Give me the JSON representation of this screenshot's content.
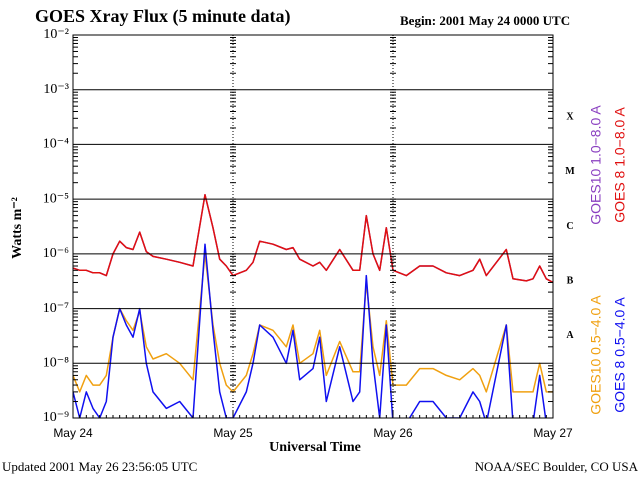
{
  "chart_data": {
    "type": "line",
    "title": "GOES Xray Flux (5 minute data)",
    "subtitle": "Begin:  2001 May 24 0000 UTC",
    "y_label": "Watts m⁻²",
    "x_label": "Universal Time",
    "footer_left": "Updated 2001 May 26 23:56:05 UTC",
    "footer_right": "NOAA/SEC Boulder, CO USA",
    "log_y": true,
    "grid": true,
    "xlim": [
      0,
      72
    ],
    "xticks": [
      {
        "value": 0,
        "label": "May 24"
      },
      {
        "value": 24,
        "label": "May 25"
      },
      {
        "value": 48,
        "label": "May 26"
      },
      {
        "value": 72,
        "label": "May 27"
      }
    ],
    "ylim": [
      1e-09,
      0.01
    ],
    "yticks": [
      {
        "value": 1e-09,
        "label": "10⁻⁹"
      },
      {
        "value": 1e-08,
        "label": "10⁻⁸"
      },
      {
        "value": 1e-07,
        "label": "10⁻⁷"
      },
      {
        "value": 1e-06,
        "label": "10⁻⁶"
      },
      {
        "value": 1e-05,
        "label": "10⁻⁵"
      },
      {
        "value": 0.0001,
        "label": "10⁻⁴"
      },
      {
        "value": 0.001,
        "label": "10⁻³"
      },
      {
        "value": 0.01,
        "label": "10⁻²"
      }
    ],
    "class_labels": [
      {
        "value": 1e-08,
        "label": "A"
      },
      {
        "value": 1e-07,
        "label": "B"
      },
      {
        "value": 1e-06,
        "label": "C"
      },
      {
        "value": 1e-05,
        "label": "M"
      },
      {
        "value": 0.0001,
        "label": "X"
      }
    ],
    "x": [
      0,
      1,
      2,
      3,
      4,
      5,
      6,
      7,
      8,
      9,
      10,
      11,
      12,
      14,
      16,
      18,
      19.8,
      21,
      22,
      23,
      24,
      26,
      27,
      28,
      30,
      32,
      33,
      34,
      36,
      37,
      38,
      40,
      42,
      43,
      44,
      45,
      46,
      47,
      48,
      50,
      52,
      54,
      56,
      58,
      60,
      61,
      62,
      65,
      66,
      68,
      69,
      70,
      71,
      72
    ],
    "series": [
      {
        "name": "GOES10 1.0−8.0 A",
        "color": "#8a3fc0",
        "values": [
          5.5e-07,
          5e-07,
          5e-07,
          4.5e-07,
          4.5e-07,
          4e-07,
          1e-06,
          1.7e-06,
          1.3e-06,
          1.2e-06,
          2.5e-06,
          1.1e-06,
          9e-07,
          8e-07,
          7e-07,
          6e-07,
          1.2e-05,
          3e-06,
          8e-07,
          6e-07,
          4e-07,
          5e-07,
          7e-07,
          1.7e-06,
          1.5e-06,
          1.2e-06,
          1.3e-06,
          8e-07,
          6e-07,
          7e-07,
          5e-07,
          1.2e-06,
          5e-07,
          5e-07,
          5e-06,
          1e-06,
          5e-07,
          3e-06,
          5e-07,
          4e-07,
          6e-07,
          6e-07,
          4.5e-07,
          4e-07,
          5e-07,
          8e-07,
          4e-07,
          1.2e-06,
          3.5e-07,
          3.2e-07,
          3.5e-07,
          6e-07,
          3.5e-07,
          3e-07
        ]
      },
      {
        "name": "GOES 8 1.0−8.0 A",
        "color": "#e01010",
        "values": [
          5.5e-07,
          5e-07,
          5e-07,
          4.5e-07,
          4.5e-07,
          4e-07,
          1e-06,
          1.7e-06,
          1.3e-06,
          1.2e-06,
          2.5e-06,
          1.1e-06,
          9e-07,
          8e-07,
          7e-07,
          6e-07,
          1.2e-05,
          3e-06,
          8e-07,
          6e-07,
          4e-07,
          5e-07,
          7e-07,
          1.7e-06,
          1.5e-06,
          1.2e-06,
          1.3e-06,
          8e-07,
          6e-07,
          7e-07,
          5e-07,
          1.2e-06,
          5e-07,
          5e-07,
          5e-06,
          1e-06,
          5e-07,
          3e-06,
          5e-07,
          4e-07,
          6e-07,
          6e-07,
          4.5e-07,
          4e-07,
          5e-07,
          8e-07,
          4e-07,
          1.2e-06,
          3.5e-07,
          3.2e-07,
          3.5e-07,
          6e-07,
          3.5e-07,
          3e-07
        ]
      },
      {
        "name": "GOES10 0.5−4.0 A",
        "color": "#f0a010",
        "values": [
          6e-09,
          3e-09,
          6e-09,
          4e-09,
          4e-09,
          6e-09,
          3e-08,
          1e-07,
          6e-08,
          4e-08,
          9e-08,
          2e-08,
          1.2e-08,
          1.5e-08,
          1e-08,
          5e-09,
          1e-06,
          5e-08,
          1e-08,
          4e-09,
          3e-09,
          6e-09,
          1.5e-08,
          5e-08,
          4e-08,
          2e-08,
          5e-08,
          1e-08,
          1.5e-08,
          4e-08,
          6e-09,
          2.5e-08,
          7e-09,
          7e-09,
          3e-07,
          2e-08,
          6e-09,
          6e-08,
          4e-09,
          4e-09,
          8e-09,
          8e-09,
          6e-09,
          5e-09,
          8e-09,
          6e-09,
          3e-09,
          5e-08,
          3e-09,
          3e-09,
          3e-09,
          1e-08,
          3e-09,
          3e-09
        ]
      },
      {
        "name": "GOES 8 0.5−4.0 A",
        "color": "#1010f0",
        "values": [
          3e-09,
          1e-09,
          3e-09,
          1.5e-09,
          1e-09,
          2e-09,
          3e-08,
          1e-07,
          5e-08,
          3e-08,
          1e-07,
          1e-08,
          3e-09,
          1.5e-09,
          2e-09,
          1e-09,
          1.5e-06,
          4e-08,
          3e-09,
          1e-09,
          1e-09,
          3e-09,
          1e-08,
          5e-08,
          3e-08,
          1e-08,
          4e-08,
          5e-09,
          8e-09,
          3e-08,
          2e-09,
          2e-08,
          2e-09,
          3e-09,
          4e-07,
          1e-08,
          1e-09,
          5e-08,
          8e-10,
          8e-10,
          2e-09,
          2e-09,
          1e-09,
          1e-09,
          3e-09,
          2e-09,
          8e-10,
          5e-08,
          8e-10,
          8e-10,
          8e-10,
          6e-09,
          8e-10,
          8e-10
        ]
      }
    ]
  }
}
